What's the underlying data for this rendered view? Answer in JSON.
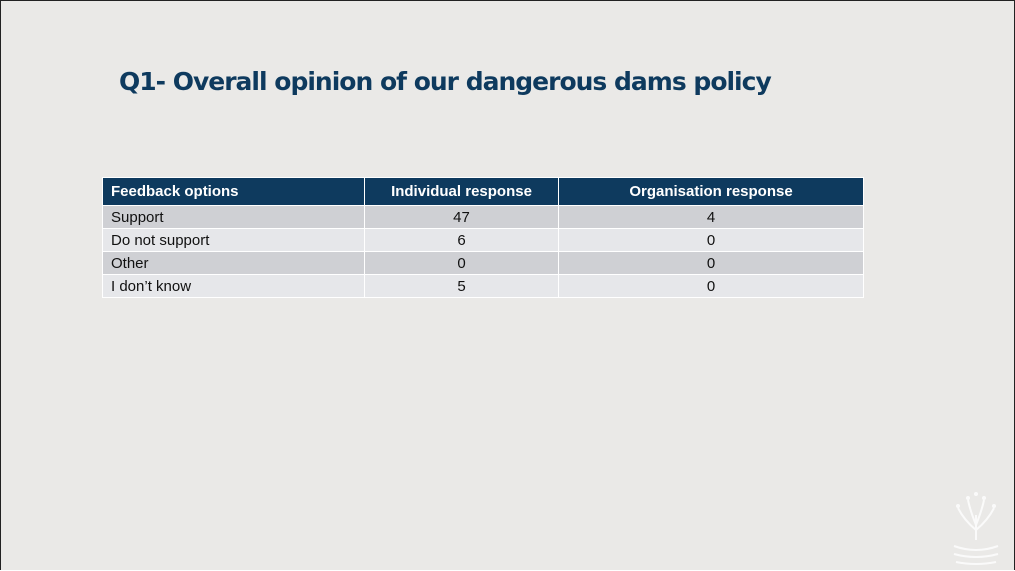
{
  "header": {
    "title": "Q1- Overall opinion of our dangerous dams policy"
  },
  "table": {
    "columns": [
      "Feedback options",
      "Individual response",
      "Organisation response"
    ],
    "rows": [
      [
        "Support",
        "47",
        "4"
      ],
      [
        "Do not support",
        "6",
        "0"
      ],
      [
        "Other",
        "0",
        "0"
      ],
      [
        "I don’t know",
        "5",
        "0"
      ]
    ]
  }
}
